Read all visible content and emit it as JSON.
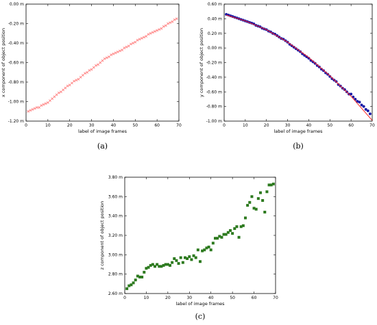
{
  "chart_data": [
    {
      "id": "a",
      "type": "scatter",
      "caption": "(a)",
      "xlabel": "label of image frames",
      "ylabel": "x component of object position",
      "xlim": [
        0,
        70
      ],
      "ylim": [
        -1.2,
        0.0
      ],
      "xticks": [
        0,
        10,
        20,
        30,
        40,
        50,
        60,
        70
      ],
      "xtick_labels": [
        "0",
        "10",
        "20",
        "30",
        "40",
        "50",
        "60",
        "70"
      ],
      "yticks": [
        0.0,
        -0.2,
        -0.4,
        -0.6,
        -0.8,
        -1.0,
        -1.2
      ],
      "ytick_labels": [
        "0.00 m",
        "-0.20 m",
        "-0.40 m",
        "-0.60 m",
        "-0.80 m",
        "-1.00 m",
        "-1.20 m"
      ],
      "grid": false,
      "series": [
        {
          "marker": "x",
          "color": "#ff6666",
          "x": [
            1,
            2,
            3,
            4,
            5,
            6,
            7,
            8,
            9,
            10,
            11,
            12,
            13,
            14,
            15,
            16,
            17,
            18,
            19,
            20,
            21,
            22,
            23,
            24,
            25,
            26,
            27,
            28,
            29,
            30,
            31,
            32,
            33,
            34,
            35,
            36,
            37,
            38,
            39,
            40,
            41,
            42,
            43,
            44,
            45,
            46,
            47,
            48,
            49,
            50,
            51,
            52,
            53,
            54,
            55,
            56,
            57,
            58,
            59,
            60,
            61,
            62,
            63,
            64,
            65,
            66,
            67,
            68,
            69
          ],
          "y": [
            -1.1,
            -1.09,
            -1.08,
            -1.07,
            -1.06,
            -1.06,
            -1.04,
            -1.03,
            -1.02,
            -1.01,
            -0.99,
            -0.97,
            -0.95,
            -0.93,
            -0.91,
            -0.9,
            -0.88,
            -0.86,
            -0.84,
            -0.83,
            -0.81,
            -0.79,
            -0.78,
            -0.77,
            -0.75,
            -0.73,
            -0.71,
            -0.7,
            -0.68,
            -0.67,
            -0.65,
            -0.63,
            -0.62,
            -0.6,
            -0.58,
            -0.56,
            -0.55,
            -0.54,
            -0.52,
            -0.51,
            -0.5,
            -0.49,
            -0.48,
            -0.47,
            -0.45,
            -0.44,
            -0.43,
            -0.41,
            -0.4,
            -0.39,
            -0.37,
            -0.36,
            -0.35,
            -0.34,
            -0.33,
            -0.31,
            -0.3,
            -0.29,
            -0.28,
            -0.27,
            -0.26,
            -0.25,
            -0.23,
            -0.22,
            -0.2,
            -0.19,
            -0.18,
            -0.16,
            -0.15
          ]
        }
      ]
    },
    {
      "id": "b",
      "type": "scatter",
      "caption": "(b)",
      "xlabel": "label of image frames",
      "ylabel": "y component of object position",
      "xlim": [
        0,
        70
      ],
      "ylim": [
        -1.0,
        0.6
      ],
      "xticks": [
        0,
        10,
        20,
        30,
        40,
        50,
        60,
        70
      ],
      "xtick_labels": [
        "0",
        "10",
        "20",
        "30",
        "40",
        "50",
        "60",
        "70"
      ],
      "yticks": [
        0.6,
        0.4,
        0.2,
        0.0,
        -0.2,
        -0.4,
        -0.6,
        -0.8,
        -1.0
      ],
      "ytick_labels": [
        "0.60 m",
        "0.40 m",
        "0.20 m",
        "0.00 m",
        "-0.20 m",
        "-0.40 m",
        "-0.60 m",
        "-0.80 m",
        "-1.00 m"
      ],
      "grid": false,
      "series": [
        {
          "marker": "circle",
          "color": "#1a1aa6",
          "x": [
            1,
            2,
            3,
            4,
            5,
            6,
            7,
            8,
            9,
            10,
            11,
            12,
            13,
            14,
            15,
            16,
            17,
            18,
            19,
            20,
            21,
            22,
            23,
            24,
            25,
            26,
            27,
            28,
            29,
            30,
            31,
            32,
            33,
            34,
            35,
            36,
            37,
            38,
            39,
            40,
            41,
            42,
            43,
            44,
            45,
            46,
            47,
            48,
            49,
            50,
            51,
            52,
            53,
            54,
            55,
            56,
            57,
            58,
            59,
            60,
            61,
            62,
            63,
            64,
            65,
            66,
            67,
            68,
            69
          ],
          "y": [
            0.46,
            0.45,
            0.44,
            0.43,
            0.42,
            0.41,
            0.4,
            0.39,
            0.38,
            0.37,
            0.36,
            0.35,
            0.34,
            0.33,
            0.31,
            0.3,
            0.29,
            0.27,
            0.26,
            0.25,
            0.23,
            0.22,
            0.2,
            0.19,
            0.17,
            0.15,
            0.13,
            0.12,
            0.1,
            0.08,
            0.05,
            0.03,
            0.01,
            -0.01,
            -0.03,
            -0.05,
            -0.08,
            -0.1,
            -0.12,
            -0.14,
            -0.17,
            -0.19,
            -0.21,
            -0.24,
            -0.26,
            -0.29,
            -0.31,
            -0.34,
            -0.36,
            -0.39,
            -0.42,
            -0.44,
            -0.46,
            -0.5,
            -0.52,
            -0.55,
            -0.57,
            -0.6,
            -0.63,
            -0.63,
            -0.67,
            -0.7,
            -0.73,
            -0.74,
            -0.78,
            -0.8,
            -0.84,
            -0.86,
            -0.9
          ]
        },
        {
          "type": "line",
          "color": "#ff2222",
          "x": [
            1,
            10,
            20,
            30,
            40,
            50,
            60,
            70
          ],
          "y": [
            0.45,
            0.37,
            0.25,
            0.08,
            -0.13,
            -0.38,
            -0.66,
            -0.99
          ]
        }
      ]
    },
    {
      "id": "c",
      "type": "scatter",
      "caption": "(c)",
      "xlabel": "label of image frames",
      "ylabel": "z component of object position",
      "xlim": [
        0,
        70
      ],
      "ylim": [
        2.6,
        3.8
      ],
      "xticks": [
        0,
        10,
        20,
        30,
        40,
        50,
        60,
        70
      ],
      "xtick_labels": [
        "0",
        "10",
        "20",
        "30",
        "40",
        "50",
        "60",
        "70"
      ],
      "yticks": [
        3.8,
        3.6,
        3.4,
        3.2,
        3.0,
        2.8,
        2.6
      ],
      "ytick_labels": [
        "3.80 m",
        "3.60 m",
        "3.40 m",
        "3.20 m",
        "3.00 m",
        "2.80 m",
        "2.60 m"
      ],
      "grid": false,
      "series": [
        {
          "marker": "square",
          "color": "#2d7a1f",
          "x": [
            1,
            2,
            3,
            4,
            5,
            6,
            7,
            8,
            9,
            10,
            11,
            12,
            13,
            14,
            15,
            16,
            17,
            18,
            19,
            20,
            21,
            22,
            23,
            24,
            25,
            26,
            27,
            28,
            29,
            30,
            31,
            32,
            33,
            34,
            35,
            36,
            37,
            38,
            39,
            40,
            41,
            42,
            43,
            44,
            45,
            46,
            47,
            48,
            49,
            50,
            51,
            52,
            53,
            54,
            55,
            56,
            57,
            58,
            59,
            60,
            61,
            62,
            63,
            64,
            65,
            66,
            67,
            68,
            69
          ],
          "y": [
            2.65,
            2.68,
            2.69,
            2.71,
            2.74,
            2.78,
            2.77,
            2.77,
            2.82,
            2.86,
            2.87,
            2.89,
            2.9,
            2.88,
            2.9,
            2.88,
            2.88,
            2.89,
            2.9,
            2.9,
            2.89,
            2.92,
            2.96,
            2.94,
            2.91,
            2.97,
            2.92,
            2.97,
            2.96,
            2.98,
            2.95,
            2.99,
            2.97,
            3.05,
            2.93,
            3.04,
            3.05,
            3.07,
            3.08,
            3.05,
            3.12,
            3.17,
            3.17,
            3.19,
            3.18,
            3.21,
            3.21,
            3.23,
            3.25,
            3.22,
            3.27,
            3.29,
            3.18,
            3.29,
            3.3,
            3.38,
            3.51,
            3.54,
            3.6,
            3.48,
            3.47,
            3.58,
            3.64,
            3.56,
            3.44,
            3.65,
            3.72,
            3.72,
            3.73
          ]
        }
      ]
    }
  ]
}
